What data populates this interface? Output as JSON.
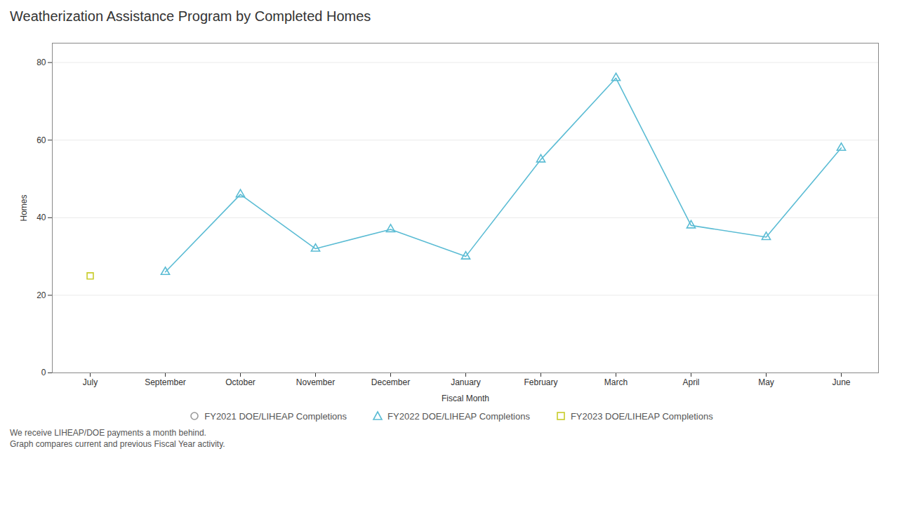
{
  "chart_data": {
    "type": "line",
    "title": "Weatherization Assistance Program by Completed Homes",
    "xlabel": "Fiscal Month",
    "ylabel": "Homes",
    "annotations": [
      "We receive LIHEAP/DOE payments a month behind.",
      "Graph compares current and previous Fiscal Year activity."
    ],
    "categories": [
      "July",
      "September",
      "October",
      "November",
      "December",
      "January",
      "February",
      "March",
      "April",
      "May",
      "June"
    ],
    "series": [
      {
        "name": "FY2021 DOE/LIHEAP Completions",
        "color": "#999999",
        "marker": "circle",
        "type": "scatter",
        "values": [
          null,
          null,
          null,
          null,
          null,
          null,
          null,
          null,
          null,
          null,
          null
        ]
      },
      {
        "name": "FY2022 DOE/LIHEAP Completions",
        "color": "#5bbcd4",
        "marker": "triangle",
        "type": "line",
        "values": [
          null,
          26,
          46,
          32,
          37,
          30,
          55,
          76,
          38,
          35,
          58
        ]
      },
      {
        "name": "FY2023 DOE/LIHEAP Completions",
        "color": "#c8cc2a",
        "marker": "square",
        "type": "scatter",
        "values": [
          25,
          null,
          null,
          null,
          null,
          null,
          null,
          null,
          null,
          null,
          null
        ]
      }
    ],
    "ylim": [
      0,
      85
    ],
    "yticks": [
      0,
      20,
      40,
      60,
      80
    ],
    "grid": true,
    "legend": "bottom"
  }
}
